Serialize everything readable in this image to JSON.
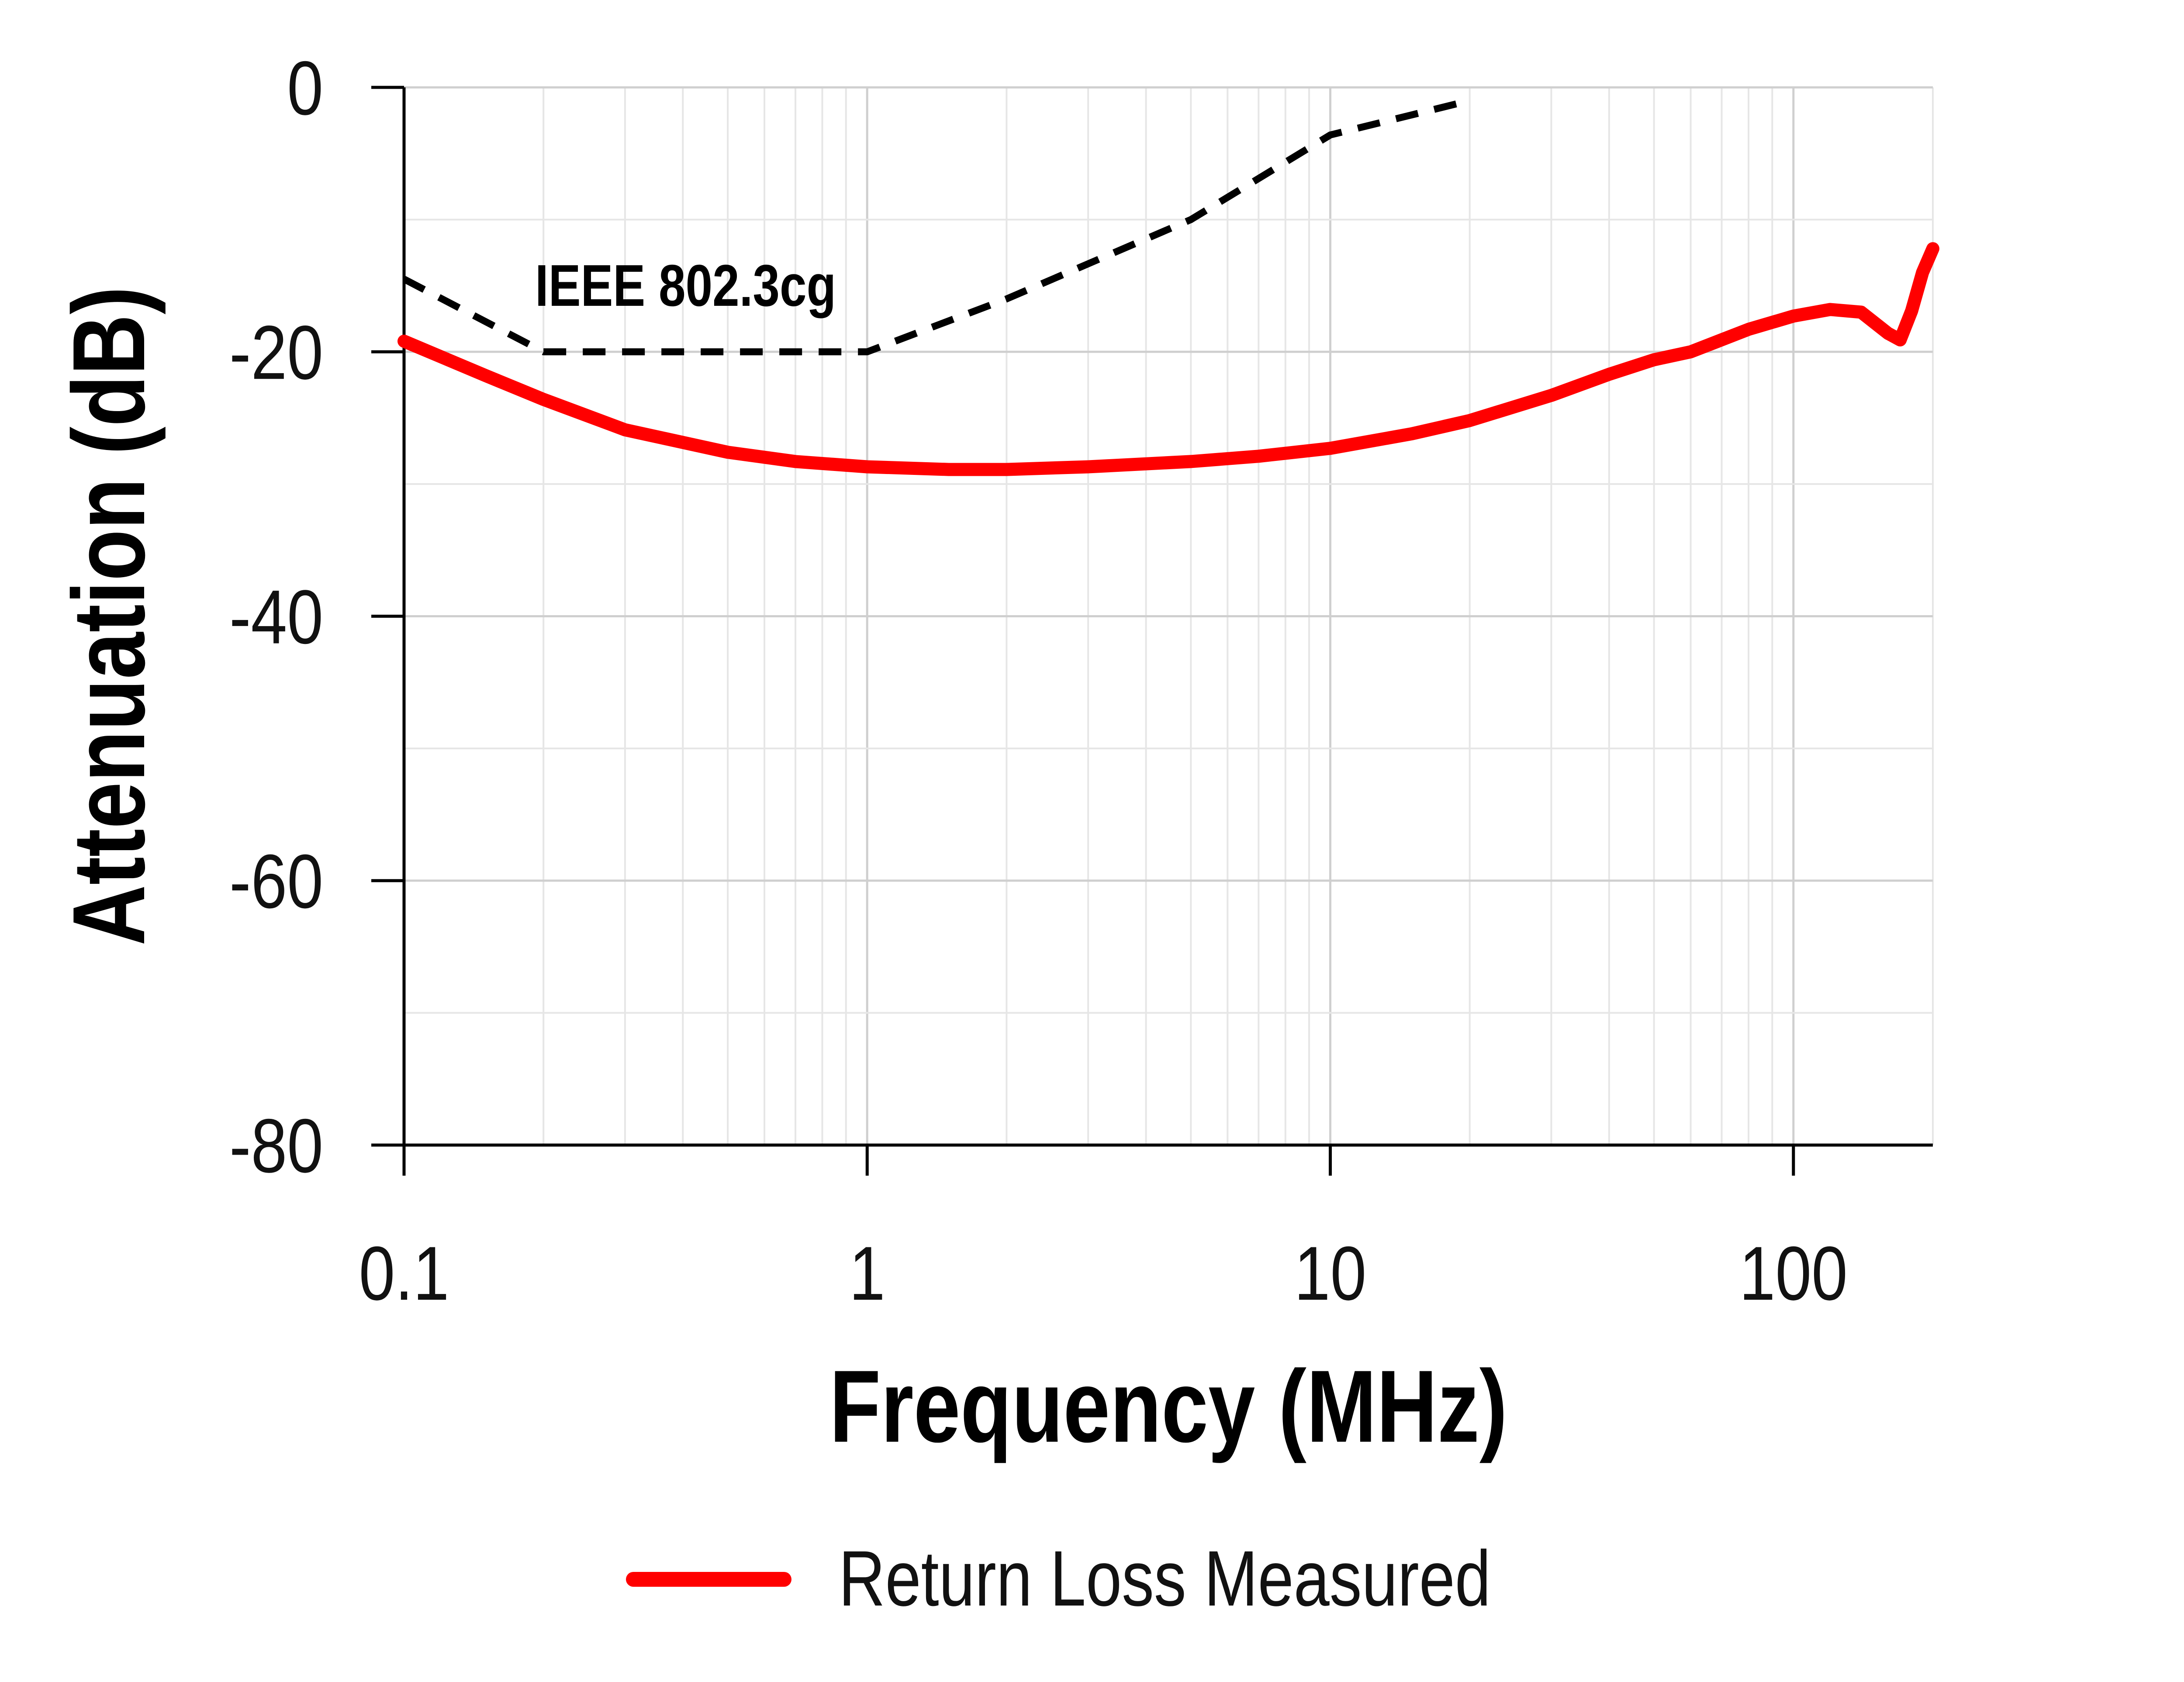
{
  "chart_data": {
    "type": "line",
    "title": "",
    "xlabel": "Frequency (MHz)",
    "ylabel": "Attenuation (dB)",
    "x_scale": "log",
    "xlim": [
      0.1,
      200
    ],
    "ylim": [
      -80,
      0
    ],
    "x_ticks": [
      0.1,
      1,
      10,
      100
    ],
    "x_tick_labels": [
      "0.1",
      "1",
      "10",
      "100"
    ],
    "y_ticks": [
      0,
      -20,
      -40,
      -60,
      -80
    ],
    "y_tick_labels": [
      "0",
      "-20",
      "-40",
      "-60",
      "-80"
    ],
    "grid": true,
    "legend_position": "bottom",
    "series": [
      {
        "name": "Return Loss Measured",
        "color": "#ff0000",
        "style": "solid",
        "x": [
          0.1,
          0.15,
          0.2,
          0.3,
          0.5,
          0.7,
          1,
          1.5,
          2,
          3,
          5,
          7,
          10,
          15,
          20,
          30,
          40,
          50,
          60,
          80,
          100,
          120,
          140,
          160,
          170,
          180,
          190,
          200
        ],
        "y": [
          -19.2,
          -21.8,
          -23.6,
          -25.9,
          -27.6,
          -28.3,
          -28.7,
          -28.9,
          -28.9,
          -28.7,
          -28.3,
          -27.9,
          -27.3,
          -26.2,
          -25.2,
          -23.3,
          -21.7,
          -20.6,
          -20.0,
          -18.3,
          -17.3,
          -16.8,
          -17.0,
          -18.6,
          -19.1,
          -16.9,
          -14.0,
          -12.2
        ]
      },
      {
        "name": "",
        "color": "#000000",
        "style": "dashed",
        "x": [
          0.1,
          0.2,
          1,
          2,
          5,
          10,
          20
        ],
        "y": [
          -14.5,
          -20,
          -20,
          -16,
          -10,
          -3.6,
          -1.0
        ]
      }
    ],
    "annotations": [
      {
        "text": "IEEE 802.3cg",
        "x": 0.2,
        "y": -14.5
      }
    ]
  }
}
